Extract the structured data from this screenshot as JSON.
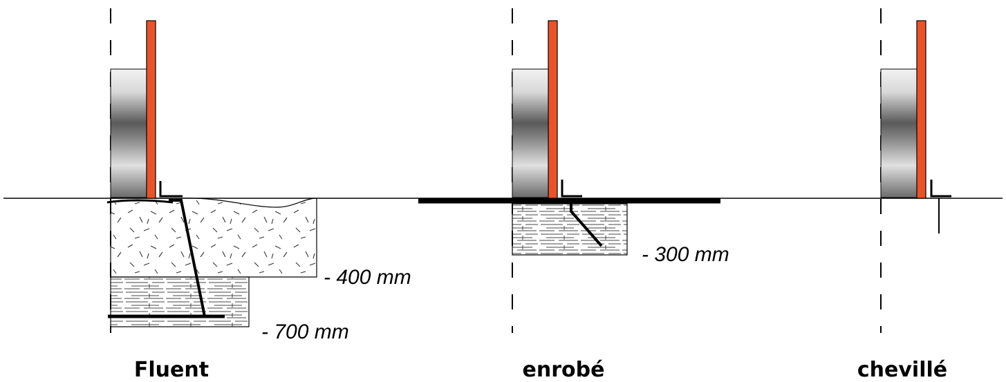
{
  "diagram": {
    "depth_labels": {
      "fluent_top": "- 400 mm",
      "fluent_bottom": "- 700 mm",
      "enrobe": "- 300 mm"
    },
    "captions": {
      "fluent": "Fluent",
      "enrobe": "enrobé",
      "cheville": "chevillé"
    },
    "colors": {
      "post": "#e8542a",
      "post_outline": "#000000",
      "ground_line": "#000000",
      "bar": "#000000",
      "cylinder_light": "#e6e6e6",
      "cylinder_dark": "#505050"
    }
  }
}
